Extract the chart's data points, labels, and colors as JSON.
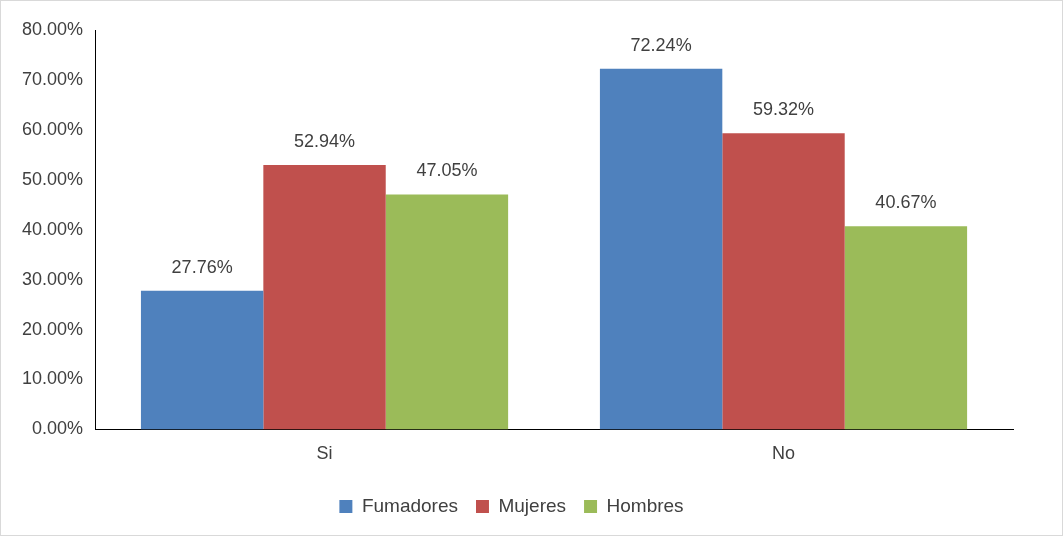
{
  "chart_data": {
    "type": "bar",
    "categories": [
      "Si",
      "No"
    ],
    "series": [
      {
        "name": "Fumadores",
        "color": "#4f81bd",
        "values": [
          27.76,
          72.24
        ],
        "value_labels": [
          "27.76%",
          "72.24%"
        ]
      },
      {
        "name": "Mujeres",
        "color": "#c0504d",
        "values": [
          52.94,
          59.32
        ],
        "value_labels": [
          "52.94%",
          "59.32%"
        ]
      },
      {
        "name": "Hombres",
        "color": "#9bbb59",
        "values": [
          47.05,
          40.67
        ],
        "value_labels": [
          "47.05%",
          "40.67%"
        ]
      }
    ],
    "ylim": [
      0,
      80
    ],
    "yticks": [
      {
        "value": 0,
        "label": "0.00%"
      },
      {
        "value": 10,
        "label": "10.00%"
      },
      {
        "value": 20,
        "label": "20.00%"
      },
      {
        "value": 30,
        "label": "30.00%"
      },
      {
        "value": 40,
        "label": "40.00%"
      },
      {
        "value": 50,
        "label": "50.00%"
      },
      {
        "value": 60,
        "label": "60.00%"
      },
      {
        "value": 70,
        "label": "70.00%"
      },
      {
        "value": 80,
        "label": "80.00%"
      }
    ],
    "grid": false,
    "legend": "bottom"
  }
}
